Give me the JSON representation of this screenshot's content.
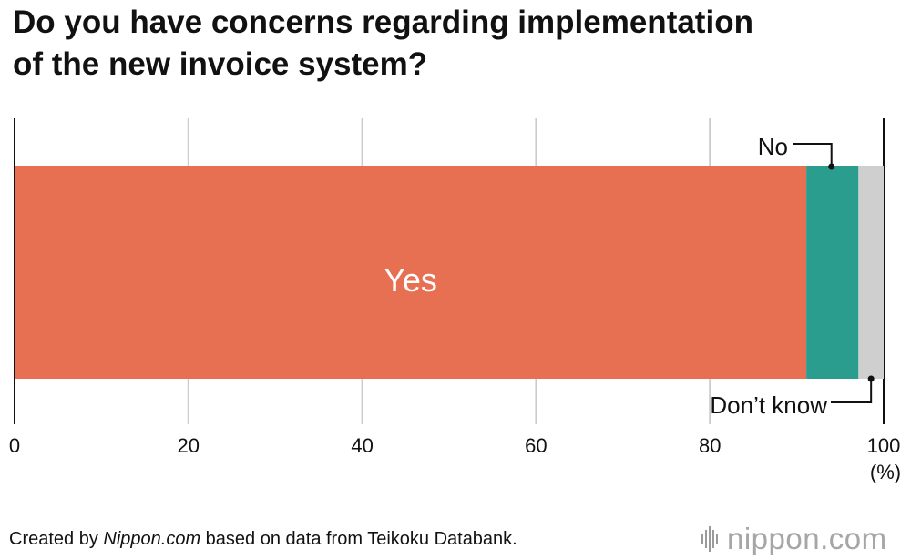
{
  "title": {
    "line1": "Do you have concerns regarding implementation",
    "line2": "of the new invoice system?"
  },
  "chart_data": {
    "type": "bar",
    "orientation": "horizontal",
    "stacked": true,
    "title": "Do you have concerns regarding implementation of the new invoice system?",
    "unit_label": "(%)",
    "xlim": [
      0,
      100
    ],
    "x_ticks": [
      "0",
      "20",
      "40",
      "60",
      "80",
      "100"
    ],
    "grid": true,
    "series": [
      {
        "name": "Yes",
        "value": 91.1,
        "color": "#E67051"
      },
      {
        "name": "No",
        "value": 6.0,
        "color": "#2A9D8F"
      },
      {
        "name": "Don’t know",
        "value": 2.9,
        "color": "#CFCFCF"
      }
    ]
  },
  "footer": {
    "source_prefix": "Created by ",
    "source_site": "Nippon.com",
    "source_suffix": " based on data from Teikoku Databank.",
    "logo_text": "nippon.com",
    "logo_icon": "sound-bars-icon"
  }
}
